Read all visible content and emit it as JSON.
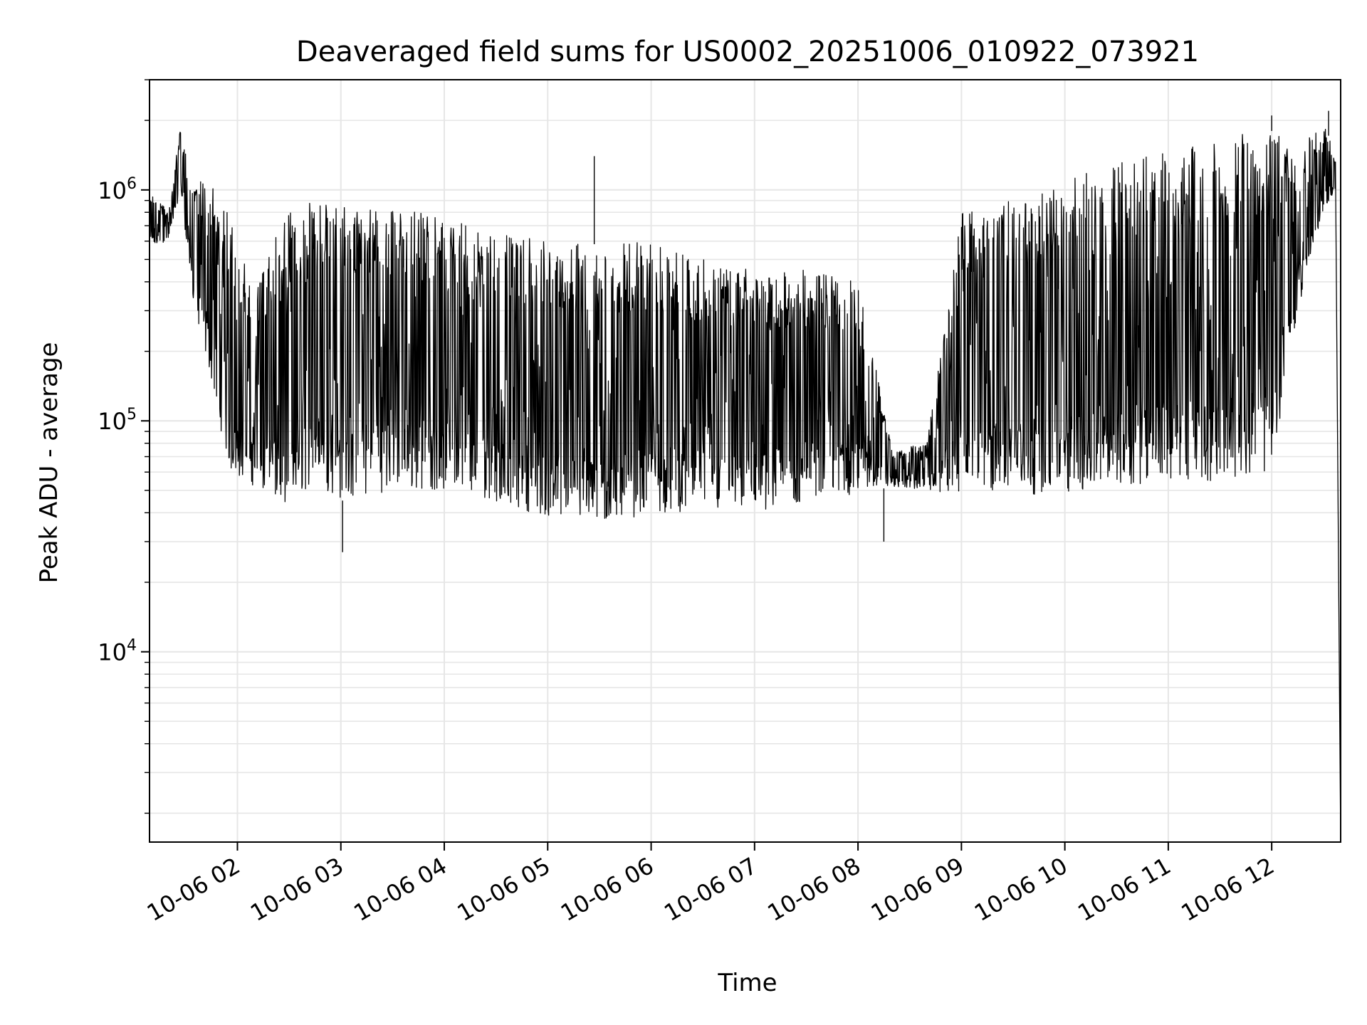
{
  "chart_data": {
    "type": "line",
    "title": "Deaveraged field sums for US0002_20251006_010922_073921",
    "xlabel": "Time",
    "ylabel": "Peak ADU - average",
    "yscale": "log",
    "ylim": [
      1500,
      3000000
    ],
    "xlim": [
      "10-06 01:09",
      "10-06 12:40"
    ],
    "grid": true,
    "line_color": "#000000",
    "grid_color": "#e6e6e6",
    "x_ticks": [
      "10-06 02",
      "10-06 03",
      "10-06 04",
      "10-06 05",
      "10-06 06",
      "10-06 07",
      "10-06 08",
      "10-06 09",
      "10-06 10",
      "10-06 11",
      "10-06 12"
    ],
    "y_ticks": [
      {
        "base": "10",
        "exp": "4",
        "value": 10000
      },
      {
        "base": "10",
        "exp": "5",
        "value": 100000
      },
      {
        "base": "10",
        "exp": "6",
        "value": 1000000
      }
    ],
    "series": [
      {
        "description": "dense noisy trace; lower envelope (lo) and upper envelope (hi) in ADU at time t",
        "envelope": [
          {
            "t": "10-06 01:09",
            "lo": 550000,
            "hi": 1000000
          },
          {
            "t": "10-06 01:20",
            "lo": 600000,
            "hi": 800000
          },
          {
            "t": "10-06 01:27",
            "lo": 1000000,
            "hi": 1900000
          },
          {
            "t": "10-06 01:35",
            "lo": 300000,
            "hi": 1100000
          },
          {
            "t": "10-06 01:45",
            "lo": 150000,
            "hi": 1100000
          },
          {
            "t": "10-06 01:55",
            "lo": 60000,
            "hi": 800000
          },
          {
            "t": "10-06 02:10",
            "lo": 52000,
            "hi": 350000
          },
          {
            "t": "10-06 02:30",
            "lo": 42000,
            "hi": 900000
          },
          {
            "t": "10-06 02:45",
            "lo": 55000,
            "hi": 900000
          },
          {
            "t": "10-06 03:00",
            "lo": 45000,
            "hi": 850000
          },
          {
            "t": "10-06 03:30",
            "lo": 50000,
            "hi": 850000
          },
          {
            "t": "10-06 04:00",
            "lo": 50000,
            "hi": 750000
          },
          {
            "t": "10-06 04:30",
            "lo": 45000,
            "hi": 650000
          },
          {
            "t": "10-06 05:00",
            "lo": 38000,
            "hi": 600000
          },
          {
            "t": "10-06 05:30",
            "lo": 35000,
            "hi": 580000
          },
          {
            "t": "10-06 06:00",
            "lo": 40000,
            "hi": 600000
          },
          {
            "t": "10-06 06:30",
            "lo": 40000,
            "hi": 500000
          },
          {
            "t": "10-06 07:00",
            "lo": 40000,
            "hi": 450000
          },
          {
            "t": "10-06 07:30",
            "lo": 45000,
            "hi": 450000
          },
          {
            "t": "10-06 08:00",
            "lo": 48000,
            "hi": 400000
          },
          {
            "t": "10-06 08:20",
            "lo": 52000,
            "hi": 75000
          },
          {
            "t": "10-06 08:40",
            "lo": 50000,
            "hi": 80000
          },
          {
            "t": "10-06 09:00",
            "lo": 48000,
            "hi": 800000
          },
          {
            "t": "10-06 09:30",
            "lo": 48000,
            "hi": 900000
          },
          {
            "t": "10-06 10:00",
            "lo": 48000,
            "hi": 1100000
          },
          {
            "t": "10-06 10:30",
            "lo": 52000,
            "hi": 1300000
          },
          {
            "t": "10-06 11:00",
            "lo": 55000,
            "hi": 1500000
          },
          {
            "t": "10-06 11:30",
            "lo": 55000,
            "hi": 1700000
          },
          {
            "t": "10-06 12:00",
            "lo": 60000,
            "hi": 1800000
          },
          {
            "t": "10-06 12:15",
            "lo": 300000,
            "hi": 1500000
          },
          {
            "t": "10-06 12:30",
            "lo": 800000,
            "hi": 2000000
          },
          {
            "t": "10-06 12:37",
            "lo": 1000000,
            "hi": 1400000
          },
          {
            "t": "10-06 12:40",
            "lo": 1500,
            "hi": 1500
          }
        ],
        "spikes": [
          {
            "t": "10-06 05:27",
            "value": 1400000
          },
          {
            "t": "10-06 12:00",
            "value": 2100000
          },
          {
            "t": "10-06 12:33",
            "value": 2200000
          },
          {
            "t": "10-06 03:01",
            "value": 27000
          },
          {
            "t": "10-06 08:15",
            "value": 30000
          }
        ]
      }
    ]
  }
}
